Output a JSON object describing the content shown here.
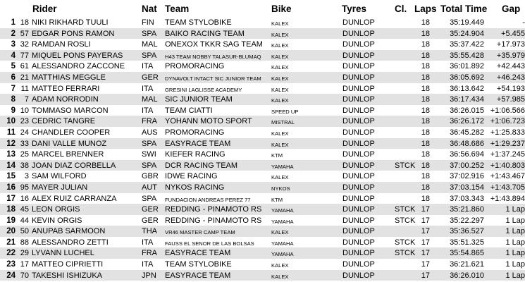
{
  "headers": {
    "rider": "Rider",
    "nat": "Nat",
    "team": "Team",
    "bike": "Bike",
    "tyres": "Tyres",
    "cl": "Cl.",
    "laps": "Laps",
    "total_time": "Total Time",
    "gap": "Gap"
  },
  "rows": [
    {
      "pos": "1",
      "num": "18",
      "rider": "NIKI RIKHARD TUULI",
      "nat": "FIN",
      "team": "TEAM STYLOBIKE",
      "team_small": false,
      "bike": "KALEX",
      "tyres": "DUNLOP",
      "cl": "",
      "laps": "18",
      "time": "35:19.449",
      "gap": "-"
    },
    {
      "pos": "2",
      "num": "57",
      "rider": "EDGAR PONS RAMON",
      "nat": "SPA",
      "team": "BAIKO RACING TEAM",
      "team_small": false,
      "bike": "KALEX",
      "tyres": "DUNLOP",
      "cl": "",
      "laps": "18",
      "time": "35:24.904",
      "gap": "+5.455"
    },
    {
      "pos": "3",
      "num": "32",
      "rider": "RAMDAN ROSLI",
      "nat": "MAL",
      "team": "ONEXOX TKKR SAG TEAM",
      "team_small": false,
      "bike": "KALEX",
      "tyres": "DUNLOP",
      "cl": "",
      "laps": "18",
      "time": "35:37.422",
      "gap": "+17.973"
    },
    {
      "pos": "4",
      "num": "77",
      "rider": "MIQUEL PONS PAYERAS",
      "nat": "SPA",
      "team": "H43 TEAM NOBBY TALASUR-BLUMAQ",
      "team_small": true,
      "bike": "KALEX",
      "tyres": "DUNLOP",
      "cl": "",
      "laps": "18",
      "time": "35:55.428",
      "gap": "+35.979"
    },
    {
      "pos": "5",
      "num": "61",
      "rider": "ALESSANDRO ZACCONE",
      "nat": "ITA",
      "team": "PROMORACING",
      "team_small": false,
      "bike": "KALEX",
      "tyres": "DUNLOP",
      "cl": "",
      "laps": "18",
      "time": "36:01.892",
      "gap": "+42.443"
    },
    {
      "pos": "6",
      "num": "21",
      "rider": "MATTHIAS MEGGLE",
      "nat": "GER",
      "team": "DYNAVOLT INTACT SIC JUNIOR TEAM",
      "team_small": true,
      "bike": "KALEX",
      "tyres": "DUNLOP",
      "cl": "",
      "laps": "18",
      "time": "36:05.692",
      "gap": "+46.243"
    },
    {
      "pos": "7",
      "num": "11",
      "rider": "MATTEO FERRARI",
      "nat": "ITA",
      "team": "GRESINI LAGLISSE ACADEMY",
      "team_small": true,
      "bike": "KALEX",
      "tyres": "DUNLOP",
      "cl": "",
      "laps": "18",
      "time": "36:13.642",
      "gap": "+54.193"
    },
    {
      "pos": "8",
      "num": "7",
      "rider": "ADAM NORRODIN",
      "nat": "MAL",
      "team": "SIC JUNIOR TEAM",
      "team_small": false,
      "bike": "KALEX",
      "tyres": "DUNLOP",
      "cl": "",
      "laps": "18",
      "time": "36:17.434",
      "gap": "+57.985"
    },
    {
      "pos": "9",
      "num": "10",
      "rider": "TOMMASO MARCON",
      "nat": "ITA",
      "team": "TEAM CIATTI",
      "team_small": false,
      "bike": "SPEED UP",
      "tyres": "DUNLOP",
      "cl": "",
      "laps": "18",
      "time": "36:26.015",
      "gap": "+1:06.566"
    },
    {
      "pos": "10",
      "num": "23",
      "rider": "CEDRIC TANGRE",
      "nat": "FRA",
      "team": "YOHANN MOTO SPORT",
      "team_small": false,
      "bike": "MISTRAL",
      "tyres": "DUNLOP",
      "cl": "",
      "laps": "18",
      "time": "36:26.172",
      "gap": "+1:06.723"
    },
    {
      "pos": "11",
      "num": "24",
      "rider": "CHANDLER COOPER",
      "nat": "AUS",
      "team": "PROMORACING",
      "team_small": false,
      "bike": "KALEX",
      "tyres": "DUNLOP",
      "cl": "",
      "laps": "18",
      "time": "36:45.282",
      "gap": "+1:25.833"
    },
    {
      "pos": "12",
      "num": "33",
      "rider": "DANI VALLE MUNOZ",
      "nat": "SPA",
      "team": "EASYRACE TEAM",
      "team_small": false,
      "bike": "KALEX",
      "tyres": "DUNLOP",
      "cl": "",
      "laps": "18",
      "time": "36:48.686",
      "gap": "+1:29.237"
    },
    {
      "pos": "13",
      "num": "25",
      "rider": "MARCEL BRENNER",
      "nat": "SWI",
      "team": "KIEFER RACING",
      "team_small": false,
      "bike": "KTM",
      "tyres": "DUNLOP",
      "cl": "",
      "laps": "18",
      "time": "36:56.694",
      "gap": "+1:37.245"
    },
    {
      "pos": "14",
      "num": "38",
      "rider": "JOAN DIAZ CORBELLA",
      "nat": "SPA",
      "team": "DCR RACING TEAM",
      "team_small": false,
      "bike": "YAMAHA",
      "tyres": "DUNLOP",
      "cl": "STCK",
      "laps": "18",
      "time": "37:00.252",
      "gap": "+1:40.803"
    },
    {
      "pos": "15",
      "num": "3",
      "rider": "SAM WILFORD",
      "nat": "GBR",
      "team": "IDWE RACING",
      "team_small": false,
      "bike": "KALEX",
      "tyres": "DUNLOP",
      "cl": "",
      "laps": "18",
      "time": "37:02.916",
      "gap": "+1:43.467"
    },
    {
      "pos": "16",
      "num": "95",
      "rider": "MAYER JULIAN",
      "nat": "AUT",
      "team": "NYKOS RACING",
      "team_small": false,
      "bike": "NYKOS",
      "tyres": "DUNLOP",
      "cl": "",
      "laps": "18",
      "time": "37:03.154",
      "gap": "+1:43.705"
    },
    {
      "pos": "17",
      "num": "16",
      "rider": "ALEX RUIZ CARRANZA",
      "nat": "SPA",
      "team": "FUNDACION ANDREAS PEREZ 77",
      "team_small": true,
      "bike": "KTM",
      "tyres": "DUNLOP",
      "cl": "",
      "laps": "18",
      "time": "37:03.343",
      "gap": "+1:43.894"
    },
    {
      "pos": "18",
      "num": "45",
      "rider": "LEON ORGIS",
      "nat": "GER",
      "team": "REDDING - PINAMOTO RS",
      "team_small": false,
      "bike": "YAMAHA",
      "tyres": "DUNLOP",
      "cl": "STCK",
      "laps": "17",
      "time": "35:21.860",
      "gap": "1 Lap"
    },
    {
      "pos": "19",
      "num": "44",
      "rider": "KEVIN ORGIS",
      "nat": "GER",
      "team": "REDDING - PINAMOTO RS",
      "team_small": false,
      "bike": "YAMAHA",
      "tyres": "DUNLOP",
      "cl": "STCK",
      "laps": "17",
      "time": "35:22.297",
      "gap": "1 Lap"
    },
    {
      "pos": "20",
      "num": "50",
      "rider": "ANUPAB SARMOON",
      "nat": "THA",
      "team": "VR46 MASTER CAMP TEAM",
      "team_small": true,
      "bike": "KALEX",
      "tyres": "DUNLOP",
      "cl": "",
      "laps": "17",
      "time": "35:36.527",
      "gap": "1 Lap"
    },
    {
      "pos": "21",
      "num": "88",
      "rider": "ALESSANDRO ZETTI",
      "nat": "ITA",
      "team": "FAUSS EL SENOR DE LAS BOLSAS",
      "team_small": true,
      "bike": "YAMAHA",
      "tyres": "DUNLOP",
      "cl": "STCK",
      "laps": "17",
      "time": "35:51.325",
      "gap": "1 Lap"
    },
    {
      "pos": "22",
      "num": "29",
      "rider": "LYVANN LUCHEL",
      "nat": "FRA",
      "team": "EASYRACE TEAM",
      "team_small": false,
      "bike": "YAMAHA",
      "tyres": "DUNLOP",
      "cl": "STCK",
      "laps": "17",
      "time": "35:54.865",
      "gap": "1 Lap"
    },
    {
      "pos": "23",
      "num": "17",
      "rider": "MATTEO CIPRIETTI",
      "nat": "ITA",
      "team": "TEAM STYLOBIKE",
      "team_small": false,
      "bike": "KALEX",
      "tyres": "DUNLOP",
      "cl": "",
      "laps": "17",
      "time": "36:21.621",
      "gap": "1 Lap"
    },
    {
      "pos": "24",
      "num": "70",
      "rider": "TAKESHI ISHIZUKA",
      "nat": "JPN",
      "team": "EASYRACE TEAM",
      "team_small": false,
      "bike": "KALEX",
      "tyres": "DUNLOP",
      "cl": "",
      "laps": "17",
      "time": "36:26.010",
      "gap": "1 Lap"
    }
  ]
}
